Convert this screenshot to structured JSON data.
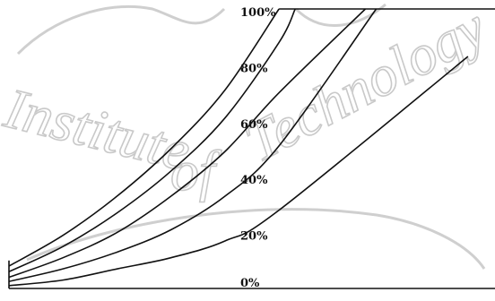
{
  "watermark": {
    "text_left": "Institute",
    "text_mid": "of",
    "text_right": "Technology"
  },
  "chart_data": {
    "type": "line",
    "title": "",
    "xlabel": "",
    "ylabel": "",
    "ylim": [
      0,
      100
    ],
    "y_tick_labels": [
      "100%",
      "80%",
      "60%",
      "40%",
      "20%",
      "0%"
    ],
    "grid": false,
    "series": [
      {
        "values": [
          [
            0,
            8
          ],
          [
            20,
            19
          ],
          [
            40,
            33
          ],
          [
            60,
            50
          ],
          [
            80,
            71
          ],
          [
            100,
            100
          ]
        ]
      },
      {
        "values": [
          [
            0,
            6
          ],
          [
            20,
            15
          ],
          [
            40,
            27
          ],
          [
            60,
            42
          ],
          [
            80,
            61
          ],
          [
            100,
            88
          ],
          [
            106,
            100
          ]
        ]
      },
      {
        "values": [
          [
            0,
            4
          ],
          [
            20,
            11
          ],
          [
            40,
            20
          ],
          [
            60,
            33
          ],
          [
            80,
            49
          ],
          [
            100,
            70
          ],
          [
            132,
            100
          ]
        ]
      },
      {
        "values": [
          [
            0,
            2.5
          ],
          [
            20,
            7
          ],
          [
            40,
            13
          ],
          [
            60,
            21
          ],
          [
            80,
            33
          ],
          [
            100,
            51
          ],
          [
            136,
            100
          ]
        ]
      },
      {
        "values": [
          [
            0,
            1
          ],
          [
            20,
            3
          ],
          [
            40,
            7
          ],
          [
            60,
            11
          ],
          [
            80,
            17
          ],
          [
            100,
            28
          ],
          [
            170,
            83
          ]
        ]
      }
    ]
  }
}
